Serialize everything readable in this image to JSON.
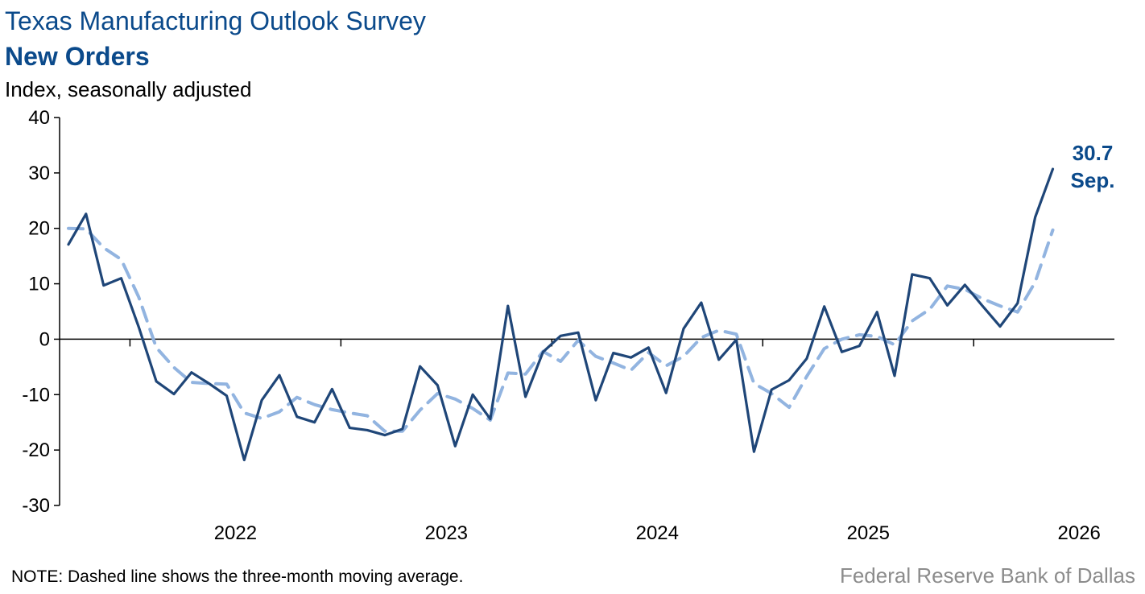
{
  "header": {
    "title": "Texas Manufacturing Outlook Survey",
    "subtitle": "New Orders",
    "units": "Index, seasonally adjusted"
  },
  "footer": {
    "note": "NOTE: Dashed line shows the three-month moving average.",
    "source": "Federal Reserve Bank of Dallas"
  },
  "colors": {
    "series_main": "#1f4678",
    "series_avg": "#92b4e0",
    "title": "#0b4a8b",
    "axis": "#000000"
  },
  "chart_data": {
    "type": "line",
    "title": "New Orders",
    "ylabel": "Index, seasonally adjusted",
    "ylim": [
      -30,
      40
    ],
    "yticks": [
      40,
      30,
      20,
      10,
      0,
      -10,
      -20,
      -30
    ],
    "x_start": "2021-09",
    "xlabels": [
      "2022",
      "2023",
      "2024",
      "2025",
      "2026"
    ],
    "grid": false,
    "series": [
      {
        "style": "solid",
        "values": [
          17.1,
          22.6,
          9.7,
          11.0,
          2.2,
          -7.6,
          -9.9,
          -6.0,
          -8.0,
          -10.2,
          -21.8,
          -11.0,
          -6.5,
          -14.0,
          -15.0,
          -9.0,
          -16.0,
          -16.4,
          -17.3,
          -16.2,
          -4.9,
          -8.3,
          -19.3,
          -10.0,
          -14.4,
          6.0,
          -10.4,
          -2.3,
          0.6,
          1.2,
          -11.0,
          -2.5,
          -3.3,
          -1.5,
          -9.7,
          1.9,
          6.6,
          -3.7,
          -0.1,
          -20.3,
          -9.1,
          -7.4,
          -3.5,
          5.9,
          -2.3,
          -1.2,
          4.9,
          -6.6,
          11.7,
          11.0,
          6.1,
          9.8,
          6.0,
          2.3,
          6.5,
          22.0,
          30.7
        ]
      },
      {
        "style": "dashed",
        "values": [
          20.0,
          19.9,
          16.5,
          14.4,
          7.6,
          -1.5,
          -5.1,
          -7.8,
          -8.0,
          -8.1,
          -13.3,
          -14.3,
          -13.1,
          -10.5,
          -11.8,
          -12.7,
          -13.3,
          -13.8,
          -16.6,
          -16.6,
          -12.8,
          -9.8,
          -10.8,
          -12.5,
          -14.6,
          -6.1,
          -6.3,
          -2.2,
          -4.0,
          -0.2,
          -3.1,
          -4.3,
          -5.6,
          -2.4,
          -4.8,
          -3.1,
          0.3,
          1.6,
          0.9,
          -8.0,
          -9.8,
          -12.3,
          -6.7,
          -1.7,
          0.0,
          0.8,
          0.5,
          -1.0,
          3.3,
          5.4,
          9.6,
          9.0,
          7.3,
          6.0,
          4.9,
          10.3,
          19.7
        ]
      }
    ],
    "annotation": {
      "value": "30.7",
      "label": "Sep."
    }
  }
}
